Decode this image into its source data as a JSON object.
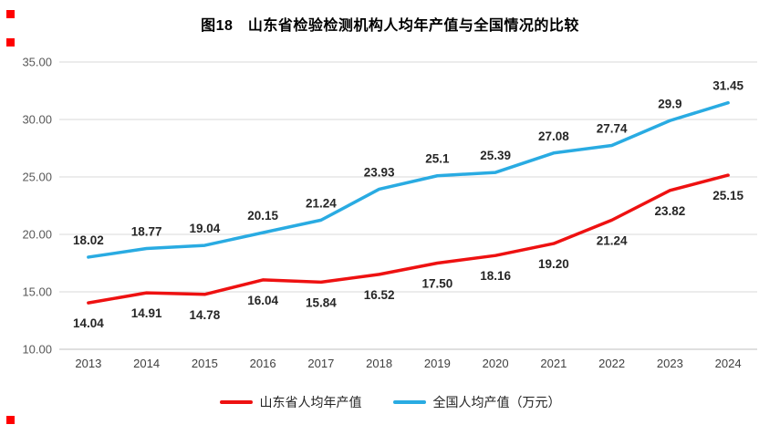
{
  "title": "图18　山东省检验检测机构人均年产值与全国情况的比较",
  "colors": {
    "grid": "#d9d9d9",
    "axis": "#bfbfbf",
    "tick_text": "#595959",
    "data_label": "#262626",
    "handle": "#ff0000",
    "series_red": "#ee1111",
    "series_blue": "#29abe2"
  },
  "chart_data": {
    "type": "line",
    "title": "图18　山东省检验检测机构人均年产值与全国情况的比较",
    "categories": [
      "2013",
      "2014",
      "2015",
      "2016",
      "2017",
      "2018",
      "2019",
      "2020",
      "2021",
      "2022",
      "2023",
      "2024"
    ],
    "series": [
      {
        "name": "山东省人均年产值",
        "color": "#ee1111",
        "values": [
          14.04,
          14.91,
          14.78,
          16.04,
          15.84,
          16.52,
          17.5,
          18.16,
          19.2,
          21.24,
          23.82,
          25.15
        ],
        "labels": [
          "14.04",
          "14.91",
          "14.78",
          "16.04",
          "15.84",
          "16.52",
          "17.50",
          "18.16",
          "19.20",
          "21.24",
          "23.82",
          "25.15"
        ],
        "label_position": "below"
      },
      {
        "name": "全国人均产值（万元）",
        "color": "#29abe2",
        "values": [
          18.02,
          18.77,
          19.04,
          20.15,
          21.24,
          23.93,
          25.1,
          25.39,
          27.08,
          27.74,
          29.9,
          31.45
        ],
        "labels": [
          "18.02",
          "18.77",
          "19.04",
          "20.15",
          "21.24",
          "23.93",
          "25.1",
          "25.39",
          "27.08",
          "27.74",
          "29.9",
          "31.45"
        ],
        "label_position": "above"
      }
    ],
    "xlabel": "",
    "ylabel": "",
    "ylim": [
      10,
      35
    ],
    "ytick_step": 5,
    "yticks": [
      "10.00",
      "15.00",
      "20.00",
      "25.00",
      "30.00",
      "35.00"
    ],
    "grid": true,
    "legend_position": "bottom"
  }
}
